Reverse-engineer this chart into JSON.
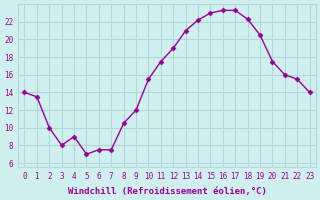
{
  "x": [
    0,
    1,
    2,
    3,
    4,
    5,
    6,
    7,
    8,
    9,
    10,
    11,
    12,
    13,
    14,
    15,
    16,
    17,
    18,
    19,
    20,
    21,
    22,
    23
  ],
  "y": [
    14,
    13.5,
    10,
    8,
    9,
    7,
    7.5,
    7.5,
    10.5,
    12,
    15.5,
    17.5,
    19,
    21,
    22.2,
    23,
    23.3,
    23.3,
    22.3,
    20.5,
    17.5,
    16,
    15.5,
    14
  ],
  "line_color": "#990099",
  "marker": "D",
  "markersize": 2.5,
  "bg_color": "#d0f0f0",
  "grid_color": "#b0d8d8",
  "xlabel": "Windchill (Refroidissement éolien,°C)",
  "xlabel_color": "#990099",
  "ylabel_ticks": [
    6,
    8,
    10,
    12,
    14,
    16,
    18,
    20,
    22
  ],
  "xtick_labels": [
    "0",
    "1",
    "2",
    "3",
    "4",
    "5",
    "6",
    "7",
    "8",
    "9",
    "10",
    "11",
    "12",
    "13",
    "14",
    "15",
    "16",
    "17",
    "18",
    "19",
    "20",
    "21",
    "22",
    "23"
  ],
  "ylim": [
    5.5,
    24
  ],
  "xlim": [
    -0.5,
    23.5
  ],
  "tick_color": "#990099",
  "label_fontsize": 6.5,
  "tick_fontsize": 5.5
}
